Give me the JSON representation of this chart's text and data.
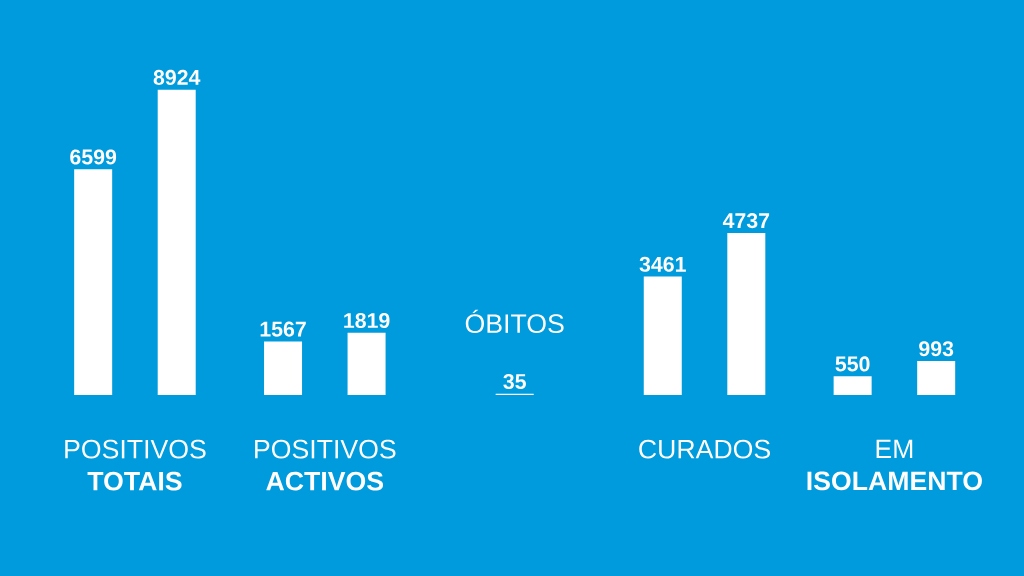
{
  "chart_data": {
    "type": "bar",
    "categories": [
      "POSITIVOS **TOTAIS**",
      "POSITIVOS **ACTIVOS**",
      "ÓBITOS",
      "CURADOS",
      "EM **ISOLAMENTO**"
    ],
    "series": [
      {
        "color": "#ffffff",
        "values": [
          6599,
          1567,
          35,
          3461,
          550
        ]
      },
      {
        "color": "#ffffff",
        "values": [
          8924,
          1819,
          null,
          4737,
          993
        ]
      }
    ],
    "data_labels": true
  }
}
